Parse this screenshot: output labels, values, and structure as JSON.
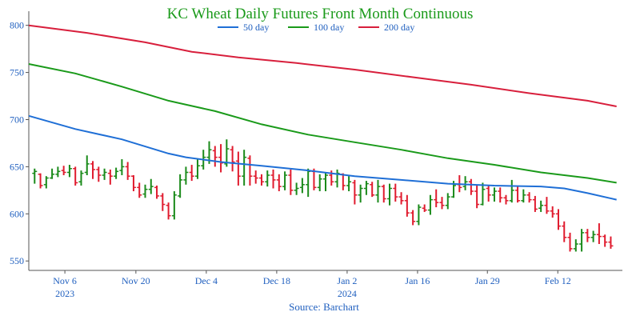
{
  "chart_data": {
    "type": "line",
    "title": "KC Wheat Daily Futures Front Month Continuous",
    "source": "Source: Barchart",
    "ylim": [
      540,
      815
    ],
    "yticks": [
      550,
      600,
      650,
      700,
      750,
      800
    ],
    "x_range": [
      0,
      102
    ],
    "xticks": [
      {
        "x": 6.2,
        "label": "Nov 6",
        "sub": "2023"
      },
      {
        "x": 18.4,
        "label": "Nov 20",
        "sub": ""
      },
      {
        "x": 30.5,
        "label": "Dec 4",
        "sub": ""
      },
      {
        "x": 42.6,
        "label": "Dec 18",
        "sub": ""
      },
      {
        "x": 54.7,
        "label": "Jan 2",
        "sub": "2024"
      },
      {
        "x": 66.8,
        "label": "Jan 16",
        "sub": ""
      },
      {
        "x": 78.8,
        "label": "Jan 29",
        "sub": ""
      },
      {
        "x": 90.9,
        "label": "Feb 12",
        "sub": ""
      }
    ],
    "legend": {
      "position": "top-center"
    },
    "colors": {
      "up": "#1a8a1a",
      "down": "#e01b2e"
    },
    "series": [
      {
        "name": "50 day",
        "color": "#1f6fd6",
        "points": [
          [
            0,
            704
          ],
          [
            8,
            690
          ],
          [
            16,
            679
          ],
          [
            24,
            664
          ],
          [
            27,
            660
          ],
          [
            33,
            655
          ],
          [
            40,
            651
          ],
          [
            48,
            646
          ],
          [
            56,
            640
          ],
          [
            64,
            636
          ],
          [
            72,
            632
          ],
          [
            80,
            630
          ],
          [
            88,
            629
          ],
          [
            92,
            627
          ],
          [
            96,
            622
          ],
          [
            101,
            615
          ]
        ]
      },
      {
        "name": "100 day",
        "color": "#1a9a1a",
        "points": [
          [
            0,
            759
          ],
          [
            8,
            749
          ],
          [
            16,
            735
          ],
          [
            24,
            720
          ],
          [
            32,
            709
          ],
          [
            40,
            695
          ],
          [
            48,
            684
          ],
          [
            56,
            676
          ],
          [
            64,
            668
          ],
          [
            72,
            659
          ],
          [
            80,
            652
          ],
          [
            88,
            644
          ],
          [
            96,
            638
          ],
          [
            101,
            633
          ]
        ]
      },
      {
        "name": "200 day",
        "color": "#d81f3c",
        "points": [
          [
            0,
            800
          ],
          [
            10,
            792
          ],
          [
            20,
            782
          ],
          [
            28,
            772
          ],
          [
            36,
            766
          ],
          [
            46,
            760
          ],
          [
            56,
            753
          ],
          [
            66,
            745
          ],
          [
            76,
            737
          ],
          [
            86,
            728
          ],
          [
            96,
            720
          ],
          [
            101,
            714
          ]
        ]
      }
    ],
    "ohlc": [
      [
        1,
        643,
        648,
        632,
        645
      ],
      [
        2,
        642,
        643,
        627,
        630
      ],
      [
        3,
        631,
        640,
        627,
        638
      ],
      [
        4,
        638,
        648,
        637,
        642
      ],
      [
        5,
        642,
        650,
        639,
        645
      ],
      [
        6,
        646,
        651,
        641,
        644
      ],
      [
        7,
        644,
        652,
        639,
        648
      ],
      [
        8,
        648,
        650,
        630,
        633
      ],
      [
        9,
        634,
        646,
        630,
        643
      ],
      [
        10,
        644,
        662,
        641,
        653
      ],
      [
        11,
        653,
        656,
        637,
        647
      ],
      [
        12,
        647,
        650,
        634,
        641
      ],
      [
        13,
        641,
        648,
        636,
        644
      ],
      [
        14,
        643,
        647,
        631,
        640
      ],
      [
        15,
        640,
        649,
        637,
        645
      ],
      [
        16,
        646,
        658,
        641,
        650
      ],
      [
        17,
        650,
        655,
        636,
        640
      ],
      [
        18,
        640,
        641,
        624,
        628
      ],
      [
        19,
        628,
        633,
        617,
        620
      ],
      [
        20,
        621,
        631,
        617,
        626
      ],
      [
        21,
        626,
        637,
        621,
        629
      ],
      [
        22,
        628,
        630,
        616,
        619
      ],
      [
        23,
        619,
        622,
        603,
        610
      ],
      [
        24,
        609,
        612,
        594,
        598
      ],
      [
        25,
        598,
        624,
        594,
        620
      ],
      [
        26,
        619,
        642,
        617,
        636
      ],
      [
        27,
        636,
        650,
        631,
        644
      ],
      [
        28,
        644,
        652,
        635,
        640
      ],
      [
        29,
        640,
        658,
        637,
        651
      ],
      [
        30,
        651,
        668,
        647,
        660
      ],
      [
        31,
        660,
        677,
        653,
        668
      ],
      [
        32,
        667,
        672,
        650,
        660
      ],
      [
        33,
        660,
        674,
        644,
        654
      ],
      [
        34,
        653,
        679,
        650,
        669
      ],
      [
        35,
        668,
        672,
        645,
        655
      ],
      [
        36,
        656,
        666,
        630,
        640
      ],
      [
        37,
        640,
        668,
        630,
        660
      ],
      [
        38,
        659,
        662,
        630,
        640
      ],
      [
        39,
        640,
        646,
        632,
        638
      ],
      [
        40,
        638,
        642,
        630,
        634
      ],
      [
        41,
        634,
        646,
        629,
        641
      ],
      [
        42,
        641,
        647,
        627,
        636
      ],
      [
        43,
        636,
        642,
        624,
        629
      ],
      [
        44,
        629,
        645,
        625,
        641
      ],
      [
        45,
        641,
        647,
        620,
        625
      ],
      [
        46,
        625,
        633,
        620,
        627
      ],
      [
        47,
        628,
        638,
        622,
        631
      ],
      [
        48,
        631,
        648,
        618,
        645
      ],
      [
        49,
        645,
        648,
        625,
        628
      ],
      [
        50,
        628,
        642,
        624,
        637
      ],
      [
        51,
        637,
        644,
        624,
        641
      ],
      [
        52,
        641,
        646,
        630,
        634
      ],
      [
        53,
        634,
        647,
        628,
        643
      ],
      [
        54,
        642,
        643,
        625,
        630
      ],
      [
        55,
        630,
        640,
        624,
        634
      ],
      [
        56,
        633,
        636,
        610,
        620
      ],
      [
        57,
        620,
        631,
        612,
        627
      ],
      [
        58,
        627,
        635,
        620,
        632
      ],
      [
        59,
        631,
        634,
        618,
        620
      ],
      [
        60,
        620,
        636,
        612,
        629
      ],
      [
        61,
        629,
        631,
        612,
        616
      ],
      [
        62,
        616,
        632,
        609,
        627
      ],
      [
        63,
        627,
        632,
        613,
        618
      ],
      [
        64,
        618,
        623,
        610,
        614
      ],
      [
        65,
        614,
        620,
        597,
        601
      ],
      [
        66,
        601,
        604,
        588,
        592
      ],
      [
        67,
        592,
        610,
        588,
        607
      ],
      [
        68,
        606,
        610,
        602,
        604
      ],
      [
        69,
        604,
        620,
        599,
        615
      ],
      [
        70,
        615,
        626,
        607,
        612
      ],
      [
        71,
        612,
        618,
        605,
        609
      ],
      [
        72,
        609,
        622,
        605,
        618
      ],
      [
        73,
        618,
        635,
        617,
        630
      ],
      [
        74,
        631,
        641,
        623,
        628
      ],
      [
        75,
        629,
        640,
        625,
        634
      ],
      [
        76,
        634,
        637,
        620,
        624
      ],
      [
        77,
        624,
        630,
        606,
        610
      ],
      [
        78,
        610,
        633,
        609,
        626
      ],
      [
        79,
        627,
        630,
        613,
        620
      ],
      [
        80,
        620,
        628,
        613,
        624
      ],
      [
        81,
        624,
        628,
        612,
        617
      ],
      [
        82,
        617,
        620,
        610,
        614
      ],
      [
        83,
        614,
        636,
        612,
        625
      ],
      [
        84,
        625,
        630,
        612,
        614
      ],
      [
        85,
        614,
        626,
        612,
        620
      ],
      [
        86,
        620,
        623,
        612,
        615
      ],
      [
        87,
        615,
        619,
        602,
        605
      ],
      [
        88,
        606,
        614,
        602,
        609
      ],
      [
        89,
        609,
        618,
        600,
        603
      ],
      [
        90,
        603,
        608,
        596,
        600
      ],
      [
        91,
        600,
        605,
        583,
        587
      ],
      [
        92,
        587,
        592,
        570,
        575
      ],
      [
        93,
        575,
        580,
        560,
        563
      ],
      [
        94,
        563,
        573,
        560,
        568
      ],
      [
        95,
        568,
        584,
        560,
        580
      ],
      [
        96,
        580,
        584,
        570,
        575
      ],
      [
        97,
        575,
        582,
        570,
        578
      ],
      [
        98,
        578,
        590,
        568,
        576
      ],
      [
        99,
        576,
        578,
        565,
        570
      ],
      [
        100,
        570,
        576,
        563,
        566
      ]
    ]
  }
}
